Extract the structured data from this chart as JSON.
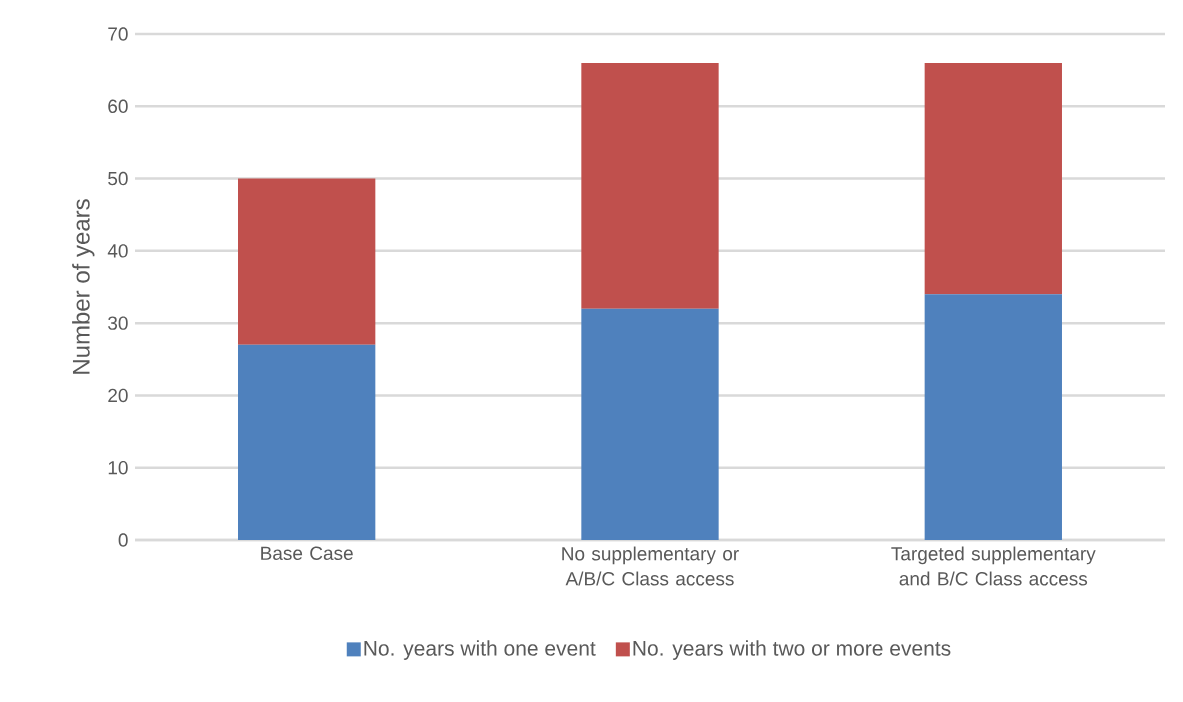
{
  "chart_data": {
    "type": "bar",
    "stacked": true,
    "ylabel": "Number of years",
    "categories": [
      "Base Case",
      "No supplementary or A/B/C Class access",
      "Targeted supplementary and B/C Class access"
    ],
    "series": [
      {
        "name": "No. years with one event",
        "color": "#4f81bd",
        "values": [
          27,
          32,
          34
        ]
      },
      {
        "name": "No. years with two or more events",
        "color": "#c0504d",
        "values": [
          23,
          34,
          32
        ]
      }
    ],
    "ylim": [
      0,
      70
    ],
    "yticks": [
      0,
      10,
      20,
      30,
      40,
      50,
      60,
      70
    ],
    "grid": "y",
    "legend": "bottom"
  }
}
